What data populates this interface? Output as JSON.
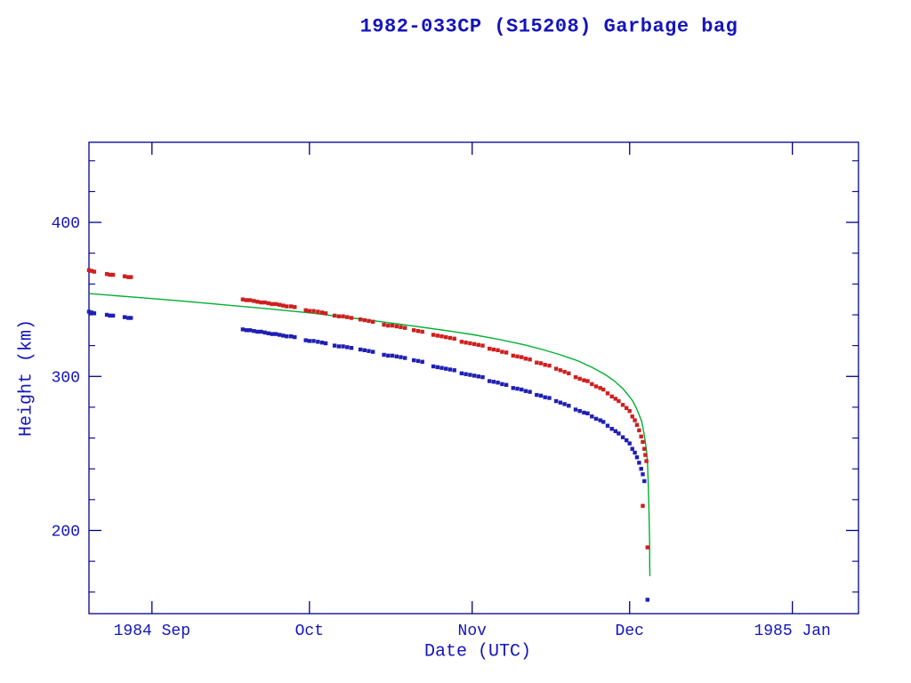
{
  "chart_data": {
    "type": "scatter",
    "title": "1982-033CP (S15208) Garbage bag",
    "xlabel": "Date (UTC)",
    "ylabel": "Height (km)",
    "x_axis": {
      "unit": "days from plot left edge (left edge = 1984 Aug 20)",
      "xlim": [
        0,
        146.6
      ],
      "major_ticks": [
        {
          "day": 12,
          "label": "1984 Sep"
        },
        {
          "day": 42,
          "label": "Oct"
        },
        {
          "day": 73,
          "label": "Nov"
        },
        {
          "day": 103,
          "label": "Dec"
        },
        {
          "day": 134,
          "label": "1985 Jan"
        }
      ]
    },
    "y_axis": {
      "ylim": [
        146,
        452
      ],
      "major_ticks": [
        200,
        300,
        400
      ],
      "minor_tick_step": 20
    },
    "colors": {
      "background": "#ffffff",
      "text": "#1414bb",
      "frame": "#00008b",
      "red_series": "#cf1f1f",
      "blue_series": "#1f1fb4",
      "green_line": "#00b030"
    },
    "legend": "none",
    "grid": false,
    "series": [
      {
        "name": "red-squares-upper",
        "type": "scatter",
        "marker": "square",
        "color": "#cf1f1f",
        "points": [
          [
            0,
            369
          ],
          [
            0.5,
            368.5
          ],
          [
            1,
            368
          ],
          [
            3.4,
            366.5
          ],
          [
            4,
            366
          ],
          [
            4.6,
            366
          ],
          [
            6.8,
            365
          ],
          [
            7.5,
            364.5
          ],
          [
            8,
            364.5
          ],
          [
            29.3,
            350
          ],
          [
            30,
            349.5
          ],
          [
            30.7,
            349.5
          ],
          [
            31.4,
            349
          ],
          [
            32.1,
            348.5
          ],
          [
            32.8,
            348
          ],
          [
            33.5,
            348
          ],
          [
            34.2,
            347.5
          ],
          [
            34.9,
            347
          ],
          [
            35.6,
            347
          ],
          [
            36.3,
            346.5
          ],
          [
            37,
            346
          ],
          [
            37.7,
            345.5
          ],
          [
            38.5,
            345.5
          ],
          [
            39.2,
            345
          ],
          [
            41.3,
            343
          ],
          [
            42,
            342.5
          ],
          [
            42.8,
            342.5
          ],
          [
            43.6,
            342
          ],
          [
            44.4,
            341.5
          ],
          [
            45.1,
            341
          ],
          [
            46.8,
            339.5
          ],
          [
            47.6,
            339
          ],
          [
            48.4,
            339
          ],
          [
            49.2,
            338.5
          ],
          [
            50,
            338
          ],
          [
            51.7,
            337
          ],
          [
            52.5,
            336.5
          ],
          [
            53.3,
            336
          ],
          [
            54.1,
            335.5
          ],
          [
            56.2,
            333.5
          ],
          [
            57,
            333
          ],
          [
            57.8,
            333
          ],
          [
            58.6,
            332.5
          ],
          [
            59.4,
            332
          ],
          [
            60.2,
            331.5
          ],
          [
            61.9,
            330
          ],
          [
            62.7,
            329.5
          ],
          [
            63.5,
            329
          ],
          [
            65.6,
            327
          ],
          [
            66.4,
            326.5
          ],
          [
            67.2,
            326
          ],
          [
            68,
            325.5
          ],
          [
            68.8,
            325
          ],
          [
            69.6,
            324.5
          ],
          [
            71,
            322.5
          ],
          [
            71.8,
            322
          ],
          [
            72.6,
            321.5
          ],
          [
            73.4,
            321
          ],
          [
            74.2,
            320.5
          ],
          [
            75,
            320
          ],
          [
            76.3,
            318
          ],
          [
            77.1,
            317.5
          ],
          [
            77.9,
            317
          ],
          [
            78.7,
            316
          ],
          [
            79.5,
            315.5
          ],
          [
            80.8,
            313.5
          ],
          [
            81.6,
            313
          ],
          [
            82.4,
            312.5
          ],
          [
            83.2,
            311.5
          ],
          [
            84,
            311
          ],
          [
            85.3,
            309
          ],
          [
            86.1,
            308.5
          ],
          [
            86.9,
            307.5
          ],
          [
            87.7,
            307
          ],
          [
            89,
            305
          ],
          [
            89.8,
            304
          ],
          [
            90.6,
            303
          ],
          [
            91.4,
            302
          ],
          [
            92.7,
            299.5
          ],
          [
            93.5,
            298.5
          ],
          [
            94.3,
            297.5
          ],
          [
            95,
            297
          ],
          [
            95.8,
            295
          ],
          [
            96.6,
            293.5
          ],
          [
            97.4,
            292.5
          ],
          [
            98,
            291.5
          ],
          [
            98.8,
            289
          ],
          [
            99.6,
            287
          ],
          [
            100.3,
            285.5
          ],
          [
            100.9,
            284
          ],
          [
            101.7,
            281.5
          ],
          [
            102.4,
            279.5
          ],
          [
            103,
            277.5
          ],
          [
            103.5,
            274
          ],
          [
            104,
            271.5
          ],
          [
            104.4,
            268.5
          ],
          [
            104.8,
            265
          ],
          [
            105.2,
            261
          ],
          [
            105.5,
            257.5
          ],
          [
            105.8,
            253
          ],
          [
            106,
            249
          ],
          [
            106.2,
            245
          ],
          [
            105.5,
            216
          ],
          [
            106.4,
            189
          ]
        ]
      },
      {
        "name": "blue-squares-lower",
        "type": "scatter",
        "marker": "square",
        "color": "#1f1fb4",
        "points": [
          [
            0,
            342
          ],
          [
            0.5,
            341.5
          ],
          [
            1,
            341
          ],
          [
            3.4,
            340
          ],
          [
            4,
            339.5
          ],
          [
            4.6,
            339.5
          ],
          [
            6.8,
            338.5
          ],
          [
            7.5,
            338
          ],
          [
            8,
            338
          ],
          [
            29.3,
            330.5
          ],
          [
            30,
            330
          ],
          [
            30.7,
            330
          ],
          [
            31.4,
            329.5
          ],
          [
            32.1,
            329
          ],
          [
            32.8,
            329
          ],
          [
            33.5,
            328.5
          ],
          [
            34.2,
            328
          ],
          [
            34.9,
            327.5
          ],
          [
            35.6,
            327.5
          ],
          [
            36.3,
            327
          ],
          [
            37,
            326.5
          ],
          [
            37.7,
            326
          ],
          [
            38.5,
            326
          ],
          [
            39.2,
            325.5
          ],
          [
            41.3,
            323.5
          ],
          [
            42,
            323
          ],
          [
            42.8,
            323
          ],
          [
            43.6,
            322.5
          ],
          [
            44.4,
            322
          ],
          [
            45.1,
            321.5
          ],
          [
            46.8,
            320
          ],
          [
            47.6,
            319.5
          ],
          [
            48.4,
            319.5
          ],
          [
            49.2,
            319
          ],
          [
            50,
            318.5
          ],
          [
            51.7,
            317.5
          ],
          [
            52.5,
            317
          ],
          [
            53.3,
            316.5
          ],
          [
            54.1,
            316
          ],
          [
            56.2,
            314
          ],
          [
            57,
            313.5
          ],
          [
            57.8,
            313.5
          ],
          [
            58.6,
            313
          ],
          [
            59.4,
            312.5
          ],
          [
            60.2,
            312
          ],
          [
            61.9,
            310.5
          ],
          [
            62.7,
            310
          ],
          [
            63.5,
            309.5
          ],
          [
            65.6,
            306.5
          ],
          [
            66.4,
            306
          ],
          [
            67.2,
            305.5
          ],
          [
            68,
            305
          ],
          [
            68.8,
            304.5
          ],
          [
            69.6,
            304
          ],
          [
            71,
            302
          ],
          [
            71.8,
            301.5
          ],
          [
            72.6,
            301
          ],
          [
            73.4,
            300.5
          ],
          [
            74.2,
            300
          ],
          [
            75,
            299.5
          ],
          [
            76.3,
            297
          ],
          [
            77.1,
            296.5
          ],
          [
            77.9,
            296
          ],
          [
            78.7,
            295
          ],
          [
            79.5,
            294.5
          ],
          [
            80.8,
            292.5
          ],
          [
            81.6,
            292
          ],
          [
            82.4,
            291.5
          ],
          [
            83.2,
            290.5
          ],
          [
            84,
            290
          ],
          [
            85.3,
            288
          ],
          [
            86.1,
            287.5
          ],
          [
            86.9,
            286.5
          ],
          [
            87.7,
            286
          ],
          [
            89,
            284
          ],
          [
            89.8,
            283
          ],
          [
            90.6,
            282
          ],
          [
            91.4,
            281
          ],
          [
            92.7,
            278.5
          ],
          [
            93.5,
            277.5
          ],
          [
            94.3,
            276.5
          ],
          [
            95,
            276
          ],
          [
            95.8,
            274
          ],
          [
            96.6,
            272.5
          ],
          [
            97.4,
            271.5
          ],
          [
            98,
            270.5
          ],
          [
            98.8,
            268
          ],
          [
            99.6,
            266
          ],
          [
            100.3,
            264.5
          ],
          [
            100.9,
            263
          ],
          [
            101.7,
            260.5
          ],
          [
            102.4,
            258.5
          ],
          [
            103,
            256.5
          ],
          [
            103.5,
            253
          ],
          [
            104,
            250.5
          ],
          [
            104.4,
            247.5
          ],
          [
            104.8,
            244
          ],
          [
            105.2,
            240
          ],
          [
            105.5,
            236.5
          ],
          [
            105.8,
            232
          ],
          [
            106.4,
            155
          ]
        ]
      },
      {
        "name": "green-mean-line",
        "type": "line",
        "color": "#00b030",
        "points": [
          [
            0,
            353.8
          ],
          [
            8.5,
            351.5
          ],
          [
            16.9,
            349.2
          ],
          [
            25.4,
            346.6
          ],
          [
            33.9,
            344
          ],
          [
            42.4,
            341.1
          ],
          [
            50.8,
            337.7
          ],
          [
            59.3,
            333.9
          ],
          [
            67.8,
            329.9
          ],
          [
            72.9,
            327.3
          ],
          [
            78,
            324.1
          ],
          [
            83.1,
            320.4
          ],
          [
            86.4,
            317.5
          ],
          [
            89.8,
            314
          ],
          [
            93.2,
            310
          ],
          [
            95.8,
            305.9
          ],
          [
            98.3,
            301.3
          ],
          [
            100,
            297.3
          ],
          [
            101.7,
            292.1
          ],
          [
            102.7,
            288
          ],
          [
            103.6,
            284
          ],
          [
            104.2,
            280
          ],
          [
            104.7,
            275.9
          ],
          [
            105.3,
            270.7
          ],
          [
            105.6,
            265.5
          ],
          [
            105.9,
            259.2
          ],
          [
            106.2,
            252.3
          ],
          [
            106.4,
            244.2
          ],
          [
            106.5,
            234.4
          ],
          [
            106.6,
            223.4
          ],
          [
            106.7,
            209.5
          ],
          [
            106.8,
            192.2
          ],
          [
            106.83,
            177.8
          ],
          [
            106.86,
            170.3
          ]
        ]
      }
    ]
  }
}
